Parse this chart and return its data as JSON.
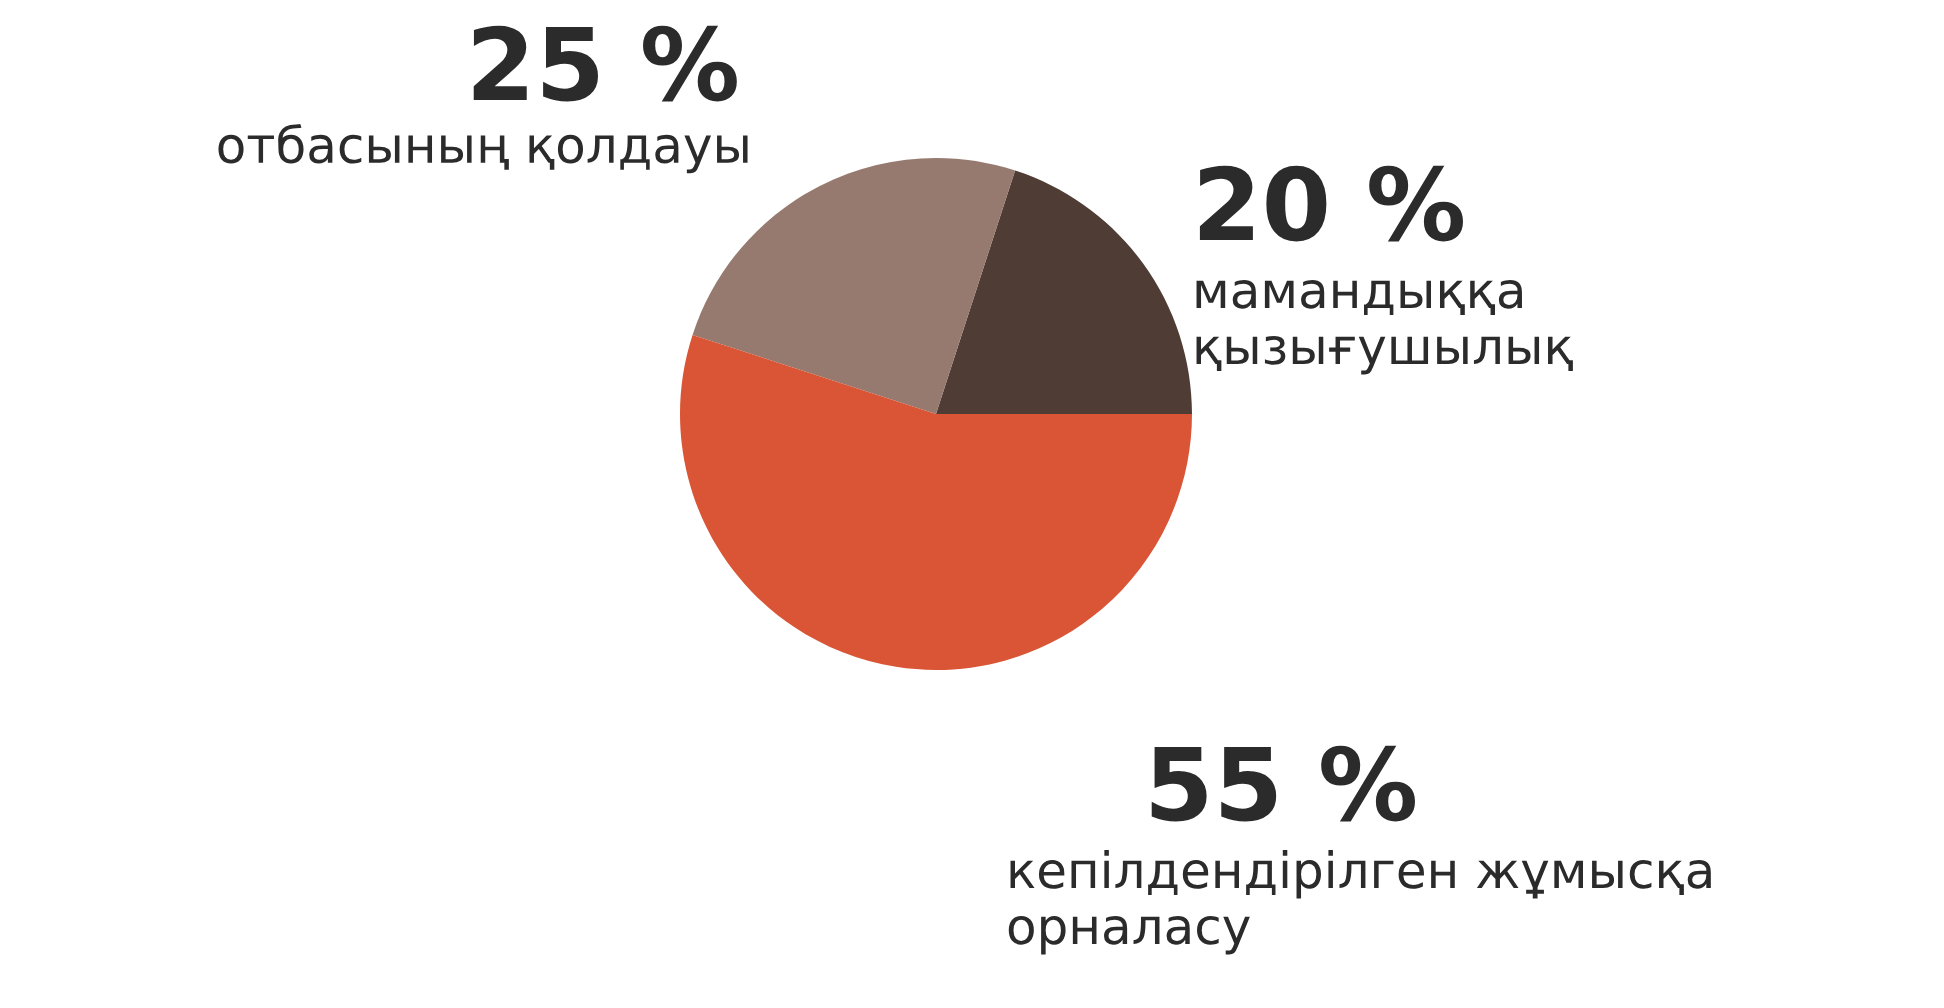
{
  "chart_data": {
    "type": "pie",
    "categories": [
      "мамандыққа\nқызығушылық",
      "отбасының қолдауы",
      "кепілдендірілген жұмысқа\nорналасу"
    ],
    "values": [
      20,
      25,
      55
    ],
    "value_labels": [
      "20 %",
      "25 %",
      "55 %"
    ],
    "colors": [
      "#4f3c35",
      "#967a6f",
      "#d95535"
    ],
    "legend": false
  }
}
